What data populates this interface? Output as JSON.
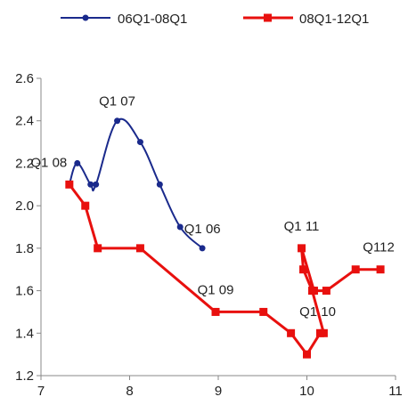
{
  "chart_data": {
    "type": "line",
    "x_axis": {
      "range": [
        7,
        11
      ],
      "ticks": [
        "7",
        "8",
        "9",
        "10",
        "11"
      ]
    },
    "y_axis": {
      "range": [
        1.2,
        2.6
      ],
      "ticks": [
        "1.2",
        "1.4",
        "1.6",
        "1.8",
        "2.0",
        "2.2",
        "2.4",
        "2.6"
      ]
    },
    "grid": false,
    "legend_position": "top",
    "series": [
      {
        "name": "06Q1-08Q1",
        "color": "#1a2a8c",
        "marker": "circle",
        "smooth": true,
        "points": [
          {
            "x": 8.82,
            "y": 1.8
          },
          {
            "x": 8.57,
            "y": 1.9
          },
          {
            "x": 8.34,
            "y": 2.1
          },
          {
            "x": 8.12,
            "y": 2.3
          },
          {
            "x": 7.86,
            "y": 2.4
          },
          {
            "x": 7.62,
            "y": 2.1
          },
          {
            "x": 7.56,
            "y": 2.1
          },
          {
            "x": 7.41,
            "y": 2.2
          },
          {
            "x": 7.32,
            "y": 2.1
          }
        ]
      },
      {
        "name": "08Q1-12Q1",
        "color": "#e8100e",
        "marker": "square",
        "smooth": false,
        "points": [
          {
            "x": 7.32,
            "y": 2.1
          },
          {
            "x": 7.5,
            "y": 2.0
          },
          {
            "x": 7.64,
            "y": 1.8
          },
          {
            "x": 8.12,
            "y": 1.8
          },
          {
            "x": 8.97,
            "y": 1.5
          },
          {
            "x": 9.51,
            "y": 1.5
          },
          {
            "x": 9.82,
            "y": 1.4
          },
          {
            "x": 10.0,
            "y": 1.3
          },
          {
            "x": 10.15,
            "y": 1.4
          },
          {
            "x": 10.19,
            "y": 1.4
          },
          {
            "x": 10.06,
            "y": 1.6
          },
          {
            "x": 9.96,
            "y": 1.7
          },
          {
            "x": 9.94,
            "y": 1.8
          },
          {
            "x": 10.08,
            "y": 1.6
          },
          {
            "x": 10.22,
            "y": 1.6
          },
          {
            "x": 10.55,
            "y": 1.7
          },
          {
            "x": 10.83,
            "y": 1.7
          }
        ]
      }
    ],
    "annotations": [
      {
        "text": "Q1 08",
        "x": 7.32,
        "y": 2.1
      },
      {
        "text": "Q1 07",
        "x": 7.86,
        "y": 2.4
      },
      {
        "text": "Q1 06",
        "x": 8.57,
        "y": 1.9
      },
      {
        "text": "Q1 09",
        "x": 8.97,
        "y": 1.5
      },
      {
        "text": "Q1 11",
        "x": 9.94,
        "y": 1.8
      },
      {
        "text": "Q1 10",
        "x": 10.0,
        "y": 1.3
      },
      {
        "text": "Q112",
        "x": 10.83,
        "y": 1.7
      }
    ]
  }
}
